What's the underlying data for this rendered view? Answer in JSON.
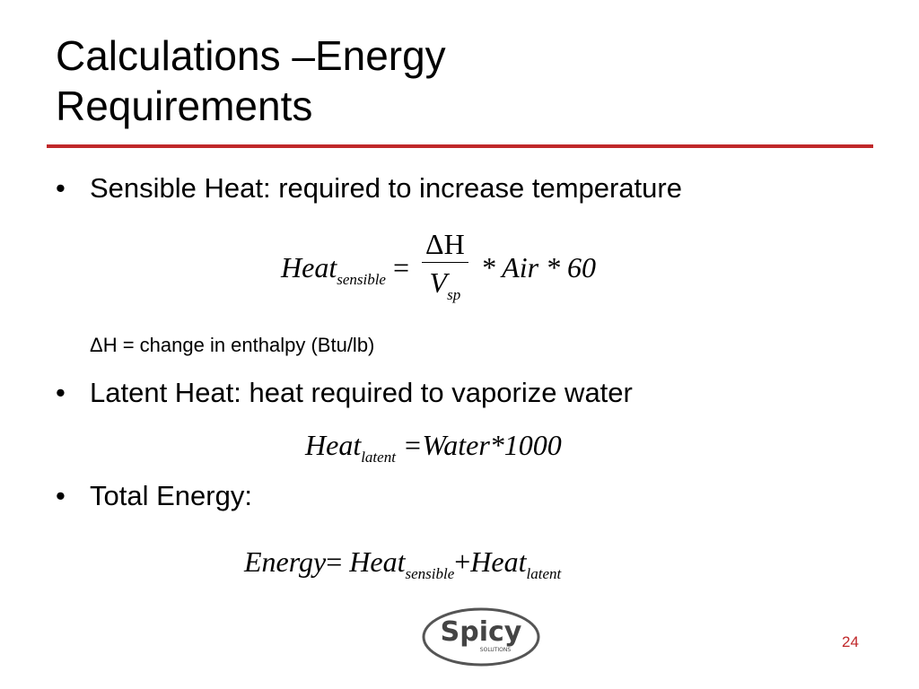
{
  "title": "Calculations –Energy Requirements",
  "bullets": [
    "Sensible Heat: required to increase temperature",
    "Latent Heat: heat required to vaporize water",
    "Total Energy:"
  ],
  "note": "ΔH = change in enthalpy (Btu/lb)",
  "equation_sensible": {
    "lhs": "Heat",
    "lhs_sub": "sensible",
    "equals": "=",
    "numerator": "ΔH",
    "denominator": "V",
    "denominator_sub": "sp",
    "rest": "* Air * 60"
  },
  "equation_latent": {
    "lhs": "Heat",
    "lhs_sub": "latent",
    "rest": "=Water*1000"
  },
  "equation_total": {
    "lhs": "Energy",
    "equals": "=",
    "term1": "Heat",
    "term1_sub": "sensible",
    "plus": "+",
    "term2": "Heat",
    "term2_sub": "latent"
  },
  "logo": {
    "name": "Spicy",
    "tagline": "SOLUTIONS"
  },
  "page_number": "24"
}
